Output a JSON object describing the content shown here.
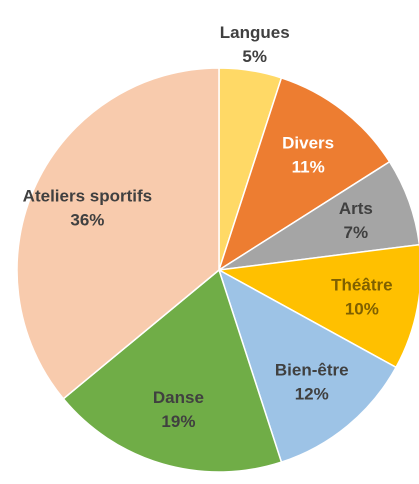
{
  "chart_data": {
    "type": "pie",
    "categories": [
      "Langues",
      "Divers",
      "Arts",
      "Théâtre",
      "Bien-être",
      "Danse",
      "Ateliers sportifs"
    ],
    "values": [
      5,
      11,
      7,
      10,
      12,
      19,
      36
    ],
    "value_labels": [
      "5%",
      "11%",
      "7%",
      "10%",
      "12%",
      "19%",
      "36%"
    ],
    "colors": [
      "#ffd966",
      "#ed7d31",
      "#a5a5a5",
      "#ffc000",
      "#9dc3e6",
      "#70ad47",
      "#f8cbad"
    ],
    "label_colors": [
      "#404040",
      "#ffffff",
      "#404040",
      "#7f6000",
      "#404040",
      "#404040",
      "#404040"
    ]
  }
}
